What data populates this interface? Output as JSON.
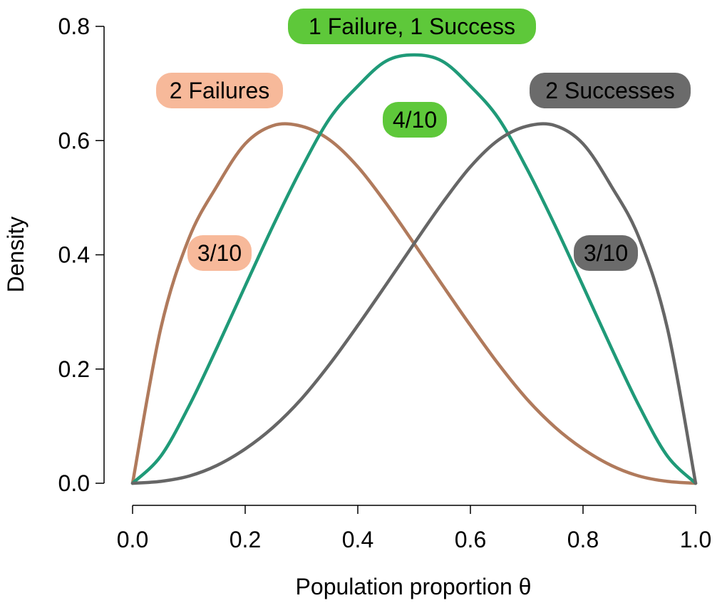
{
  "chart_data": {
    "type": "line",
    "xlabel": "Population proportion θ",
    "ylabel": "Density",
    "xlim": [
      0,
      1
    ],
    "ylim": [
      0,
      0.8
    ],
    "x_ticks": [
      "0.0",
      "0.2",
      "0.4",
      "0.6",
      "0.8",
      "1.0"
    ],
    "y_ticks": [
      "0.0",
      "0.2",
      "0.4",
      "0.6",
      "0.8"
    ],
    "x": [
      0,
      0.05,
      0.1,
      0.15,
      0.2,
      0.25,
      0.3,
      0.35,
      0.4,
      0.45,
      0.5,
      0.55,
      0.6,
      0.65,
      0.7,
      0.75,
      0.8,
      0.85,
      0.9,
      0.95,
      1
    ],
    "series": [
      {
        "name": "2 Failures",
        "color": "#b07a5c",
        "label_color": "#f7b99a",
        "prior_label": "3/10",
        "values": [
          0,
          0.2707,
          0.4286,
          0.5206,
          0.5944,
          0.6264,
          0.6252,
          0.6012,
          0.5542,
          0.4904,
          0.4197,
          0.3474,
          0.2763,
          0.2084,
          0.1478,
          0.0984,
          0.0601,
          0.0313,
          0.0125,
          0.0033,
          0
        ]
      },
      {
        "name": "1 Failure, 1 Success",
        "color": "#1f9a78",
        "label_color": "#5ec83a",
        "prior_label": "4/10",
        "values": [
          0,
          0.0473,
          0.1346,
          0.2376,
          0.3454,
          0.4519,
          0.5514,
          0.6387,
          0.6954,
          0.7391,
          0.75,
          0.7391,
          0.6954,
          0.6387,
          0.5514,
          0.4519,
          0.3454,
          0.2376,
          0.1346,
          0.0473,
          0
        ]
      },
      {
        "name": "2 Successes",
        "color": "#666666",
        "label_color": "#6b6b6b",
        "prior_label": "3/10",
        "values": [
          0,
          0.0033,
          0.0125,
          0.0313,
          0.0601,
          0.0984,
          0.1478,
          0.2084,
          0.2763,
          0.3474,
          0.4197,
          0.4904,
          0.5542,
          0.6012,
          0.6252,
          0.6264,
          0.5944,
          0.5206,
          0.4286,
          0.2707,
          0
        ]
      }
    ]
  }
}
